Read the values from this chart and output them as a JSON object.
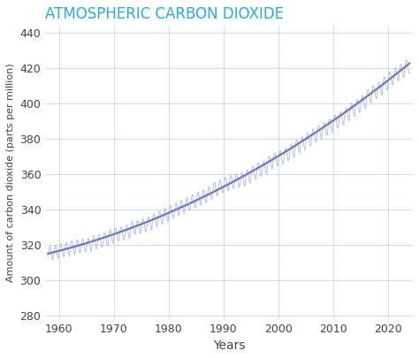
{
  "title": "ATMOSPHERIC CARBON DIOXIDE",
  "title_color": "#29ABE2",
  "xlabel": "Years",
  "ylabel": "Amount of carbon dioxide (parts per million)",
  "xlim": [
    1957.5,
    2024.5
  ],
  "ylim": [
    278,
    444
  ],
  "yticks": [
    280,
    300,
    320,
    340,
    360,
    380,
    400,
    420,
    440
  ],
  "xticks": [
    1960,
    1970,
    1980,
    1990,
    2000,
    2010,
    2020
  ],
  "line_color": "#6B72B8",
  "band_color": "#A8ADDB",
  "background_color": "#FFFFFF",
  "grid_color": "#D0DCF0",
  "co2_annual": [
    [
      1958.0,
      315.3
    ],
    [
      1958.5,
      314.0
    ],
    [
      1959.0,
      316.5
    ],
    [
      1959.5,
      314.8
    ],
    [
      1960.0,
      317.6
    ],
    [
      1960.5,
      315.9
    ],
    [
      1961.0,
      318.3
    ],
    [
      1961.5,
      316.5
    ],
    [
      1962.0,
      319.1
    ],
    [
      1962.5,
      317.4
    ],
    [
      1963.0,
      319.8
    ],
    [
      1963.5,
      317.8
    ],
    [
      1964.0,
      320.2
    ],
    [
      1964.5,
      318.3
    ],
    [
      1965.0,
      321.3
    ],
    [
      1965.5,
      319.2
    ],
    [
      1966.0,
      322.2
    ],
    [
      1966.5,
      320.0
    ],
    [
      1967.0,
      323.0
    ],
    [
      1967.5,
      321.1
    ],
    [
      1968.0,
      324.0
    ],
    [
      1968.5,
      322.0
    ],
    [
      1969.0,
      325.4
    ],
    [
      1969.5,
      323.4
    ],
    [
      1970.0,
      326.7
    ],
    [
      1970.5,
      324.6
    ],
    [
      1971.0,
      327.4
    ],
    [
      1971.5,
      325.2
    ],
    [
      1972.0,
      328.7
    ],
    [
      1972.5,
      326.6
    ],
    [
      1973.0,
      330.3
    ],
    [
      1973.5,
      328.3
    ],
    [
      1974.0,
      331.2
    ],
    [
      1974.5,
      329.1
    ],
    [
      1975.0,
      332.1
    ],
    [
      1975.5,
      330.0
    ],
    [
      1976.0,
      333.2
    ],
    [
      1976.5,
      331.0
    ],
    [
      1977.0,
      334.8
    ],
    [
      1977.5,
      332.8
    ],
    [
      1978.0,
      336.5
    ],
    [
      1978.5,
      334.4
    ],
    [
      1979.0,
      337.9
    ],
    [
      1979.5,
      336.0
    ],
    [
      1980.0,
      339.7
    ],
    [
      1980.5,
      337.7
    ],
    [
      1981.0,
      341.2
    ],
    [
      1981.5,
      339.1
    ],
    [
      1982.0,
      342.5
    ],
    [
      1982.5,
      340.5
    ],
    [
      1983.0,
      344.2
    ],
    [
      1983.5,
      342.2
    ],
    [
      1984.0,
      345.7
    ],
    [
      1984.5,
      343.7
    ],
    [
      1985.0,
      347.1
    ],
    [
      1985.5,
      345.0
    ],
    [
      1986.0,
      348.5
    ],
    [
      1986.5,
      346.5
    ],
    [
      1987.0,
      350.3
    ],
    [
      1987.5,
      348.3
    ],
    [
      1988.0,
      352.7
    ],
    [
      1988.5,
      350.7
    ],
    [
      1989.0,
      354.2
    ],
    [
      1989.5,
      352.1
    ],
    [
      1990.0,
      355.5
    ],
    [
      1990.5,
      353.4
    ],
    [
      1991.0,
      356.7
    ],
    [
      1991.5,
      354.8
    ],
    [
      1992.0,
      357.5
    ],
    [
      1992.5,
      355.5
    ],
    [
      1993.0,
      358.4
    ],
    [
      1993.5,
      356.4
    ],
    [
      1994.0,
      360.0
    ],
    [
      1994.5,
      357.9
    ],
    [
      1995.0,
      362.0
    ],
    [
      1995.5,
      360.0
    ],
    [
      1996.0,
      363.7
    ],
    [
      1996.5,
      361.8
    ],
    [
      1997.0,
      364.8
    ],
    [
      1997.5,
      363.0
    ],
    [
      1998.0,
      367.7
    ],
    [
      1998.5,
      365.7
    ],
    [
      1999.0,
      369.5
    ],
    [
      1999.5,
      367.5
    ],
    [
      2000.0,
      370.6
    ],
    [
      2000.5,
      368.7
    ],
    [
      2001.0,
      372.3
    ],
    [
      2001.5,
      370.2
    ],
    [
      2002.0,
      374.3
    ],
    [
      2002.5,
      372.3
    ],
    [
      2003.0,
      376.9
    ],
    [
      2003.5,
      374.9
    ],
    [
      2004.0,
      378.6
    ],
    [
      2004.5,
      376.6
    ],
    [
      2005.0,
      380.9
    ],
    [
      2005.5,
      379.0
    ],
    [
      2006.0,
      383.0
    ],
    [
      2006.5,
      381.0
    ],
    [
      2007.0,
      384.9
    ],
    [
      2007.5,
      382.9
    ],
    [
      2008.0,
      386.7
    ],
    [
      2008.5,
      384.7
    ],
    [
      2009.0,
      388.5
    ],
    [
      2009.5,
      386.5
    ],
    [
      2010.0,
      391.0
    ],
    [
      2010.5,
      389.0
    ],
    [
      2011.0,
      392.7
    ],
    [
      2011.5,
      390.8
    ],
    [
      2012.0,
      394.9
    ],
    [
      2012.5,
      393.0
    ],
    [
      2013.0,
      397.5
    ],
    [
      2013.5,
      395.6
    ],
    [
      2014.0,
      399.6
    ],
    [
      2014.5,
      397.7
    ],
    [
      2015.0,
      402.0
    ],
    [
      2015.5,
      400.0
    ],
    [
      2016.0,
      405.3
    ],
    [
      2016.5,
      403.3
    ],
    [
      2017.0,
      407.7
    ],
    [
      2017.5,
      405.7
    ],
    [
      2018.0,
      409.7
    ],
    [
      2018.5,
      407.7
    ],
    [
      2019.0,
      412.6
    ],
    [
      2019.5,
      410.6
    ],
    [
      2020.0,
      415.3
    ],
    [
      2020.5,
      413.3
    ],
    [
      2021.0,
      417.5
    ],
    [
      2021.5,
      415.5
    ],
    [
      2022.0,
      419.7
    ],
    [
      2022.5,
      417.7
    ],
    [
      2023.0,
      422.0
    ],
    [
      2023.5,
      420.0
    ]
  ],
  "seasonal_amplitude": 3.8
}
